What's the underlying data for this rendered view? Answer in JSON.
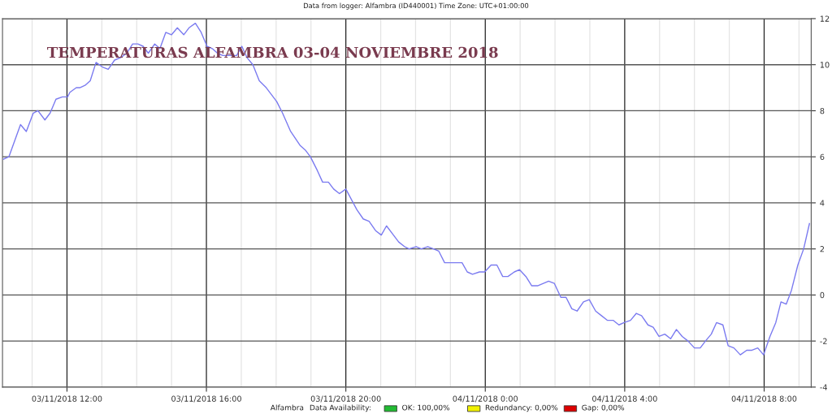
{
  "chart_data": {
    "type": "line",
    "title": "Data from logger: Alfambra (ID440001) Time Zone: UTC+01:00:00",
    "annotations": [
      "TEMPERATURAS ALFAMBRA 03-04 NOVIEMBRE 2018",
      "Alfambra",
      "Data Availability:",
      "OK: 100,00%",
      "Redundancy: 0,00%",
      "Gap: 0,00%"
    ],
    "x": [
      "2018-11-03T10:11",
      "2018-11-03T10:20",
      "2018-11-03T10:40",
      "2018-11-03T10:50",
      "2018-11-03T11:02",
      "2018-11-03T11:10",
      "2018-11-03T11:22",
      "2018-11-03T11:31",
      "2018-11-03T11:41",
      "2018-11-03T11:52",
      "2018-11-03T12:01",
      "2018-11-03T12:05",
      "2018-11-03T12:16",
      "2018-11-03T12:22",
      "2018-11-03T12:31",
      "2018-11-03T12:40",
      "2018-11-03T12:50",
      "2018-11-03T13:01",
      "2018-11-03T13:11",
      "2018-11-03T13:22",
      "2018-11-03T13:32",
      "2018-11-03T13:43",
      "2018-11-03T13:53",
      "2018-11-03T14:02",
      "2018-11-03T14:11",
      "2018-11-03T14:20",
      "2018-11-03T14:31",
      "2018-11-03T14:40",
      "2018-11-03T14:50",
      "2018-11-03T15:00",
      "2018-11-03T15:10",
      "2018-11-03T15:21",
      "2018-11-03T15:30",
      "2018-11-03T15:41",
      "2018-11-03T15:51",
      "2018-11-03T16:01",
      "2018-11-03T16:10",
      "2018-11-03T16:19",
      "2018-11-03T16:28",
      "2018-11-03T16:40",
      "2018-11-03T16:52",
      "2018-11-03T17:01",
      "2018-11-03T17:10",
      "2018-11-03T17:20",
      "2018-11-03T17:31",
      "2018-11-03T17:43",
      "2018-11-03T17:52",
      "2018-11-03T18:01",
      "2018-11-03T18:11",
      "2018-11-03T18:25",
      "2018-11-03T18:41",
      "2018-11-03T18:50",
      "2018-11-03T18:59",
      "2018-11-03T19:11",
      "2018-11-03T19:20",
      "2018-11-03T19:30",
      "2018-11-03T19:39",
      "2018-11-03T19:49",
      "2018-11-03T20:00",
      "2018-11-03T20:19",
      "2018-11-03T20:30",
      "2018-11-03T20:40",
      "2018-11-03T20:51",
      "2018-11-03T21:01",
      "2018-11-03T21:10",
      "2018-11-03T21:22",
      "2018-11-03T21:31",
      "2018-11-03T21:41",
      "2018-11-03T21:49",
      "2018-11-03T22:01",
      "2018-11-03T22:10",
      "2018-11-03T22:21",
      "2018-11-03T22:31",
      "2018-11-03T22:40",
      "2018-11-03T22:50",
      "2018-11-03T23:20",
      "2018-11-03T23:29",
      "2018-11-03T23:38",
      "2018-11-03T23:50",
      "2018-11-03T23:59",
      "2018-11-04T00:10",
      "2018-11-04T00:20",
      "2018-11-04T00:30",
      "2018-11-04T00:39",
      "2018-11-04T00:50",
      "2018-11-04T00:59",
      "2018-11-04T01:10",
      "2018-11-04T01:20",
      "2018-11-04T01:30",
      "2018-11-04T01:49",
      "2018-11-04T01:59",
      "2018-11-04T02:10",
      "2018-11-04T02:19",
      "2018-11-04T02:29",
      "2018-11-04T02:38",
      "2018-11-04T02:49",
      "2018-11-04T02:59",
      "2018-11-04T03:10",
      "2018-11-04T03:20",
      "2018-11-04T03:30",
      "2018-11-04T03:40",
      "2018-11-04T03:50",
      "2018-11-04T03:59",
      "2018-11-04T04:10",
      "2018-11-04T04:20",
      "2018-11-04T04:29",
      "2018-11-04T04:40",
      "2018-11-04T04:49",
      "2018-11-04T04:59",
      "2018-11-04T05:09",
      "2018-11-04T05:19",
      "2018-11-04T05:29",
      "2018-11-04T05:39",
      "2018-11-04T05:49",
      "2018-11-04T06:00",
      "2018-11-04T06:10",
      "2018-11-04T06:19",
      "2018-11-04T06:29",
      "2018-11-04T06:38",
      "2018-11-04T06:49",
      "2018-11-04T06:58",
      "2018-11-04T07:08",
      "2018-11-04T07:19",
      "2018-11-04T07:30",
      "2018-11-04T07:39",
      "2018-11-04T07:49",
      "2018-11-04T07:59",
      "2018-11-04T08:10",
      "2018-11-04T08:20",
      "2018-11-04T08:29",
      "2018-11-04T08:38",
      "2018-11-04T08:47",
      "2018-11-04T08:58",
      "2018-11-04T09:08",
      "2018-11-04T09:18"
    ],
    "series": [
      {
        "color": "#7b7bf0",
        "values": [
          5.9,
          6.0,
          7.4,
          7.1,
          7.9,
          8.0,
          7.6,
          7.9,
          8.5,
          8.6,
          8.6,
          8.8,
          9.0,
          9.0,
          9.1,
          9.3,
          10.1,
          9.9,
          9.8,
          10.2,
          10.3,
          10.5,
          10.9,
          10.9,
          10.8,
          10.5,
          10.9,
          10.7,
          11.4,
          11.3,
          11.6,
          11.3,
          11.6,
          11.8,
          11.4,
          10.8,
          10.7,
          10.5,
          10.4,
          10.4,
          10.4,
          10.8,
          10.3,
          10.0,
          9.3,
          9.0,
          8.7,
          8.4,
          7.9,
          7.1,
          6.5,
          6.3,
          6.0,
          5.4,
          4.9,
          4.9,
          4.6,
          4.4,
          4.6,
          3.7,
          3.3,
          3.2,
          2.8,
          2.6,
          3.0,
          2.6,
          2.3,
          2.1,
          2.0,
          2.1,
          2.0,
          2.1,
          2.0,
          1.9,
          1.4,
          1.4,
          1.0,
          0.9,
          1.0,
          1.0,
          1.3,
          1.3,
          0.8,
          0.8,
          1.0,
          1.1,
          0.8,
          0.4,
          0.4,
          0.6,
          0.5,
          -0.1,
          -0.1,
          -0.6,
          -0.7,
          -0.3,
          -0.2,
          -0.7,
          -0.9,
          -1.1,
          -1.1,
          -1.3,
          -1.2,
          -1.1,
          -0.8,
          -0.9,
          -1.3,
          -1.4,
          -1.8,
          -1.7,
          -1.9,
          -1.5,
          -1.8,
          -2.0,
          -2.3,
          -2.3,
          -2.0,
          -1.7,
          -1.2,
          -1.3,
          -2.2,
          -2.3,
          -2.6,
          -2.4,
          -2.4,
          -2.3,
          -2.6,
          -1.8,
          -1.2,
          -0.3,
          -0.4,
          0.2,
          1.3,
          2.0,
          3.1
        ]
      }
    ],
    "xlim": [
      "2018-11-03T10:09",
      "2018-11-04T09:21"
    ],
    "xticks": [
      {
        "value": "2018-11-03T11:00",
        "label": null
      },
      {
        "value": "2018-11-03T12:00",
        "label": "03/11/2018 12:00"
      },
      {
        "value": "2018-11-03T13:00",
        "label": null
      },
      {
        "value": "2018-11-03T14:00",
        "label": null
      },
      {
        "value": "2018-11-03T15:00",
        "label": null
      },
      {
        "value": "2018-11-03T16:00",
        "label": "03/11/2018 16:00"
      },
      {
        "value": "2018-11-03T17:00",
        "label": null
      },
      {
        "value": "2018-11-03T18:00",
        "label": null
      },
      {
        "value": "2018-11-03T19:00",
        "label": null
      },
      {
        "value": "2018-11-03T20:00",
        "label": "03/11/2018 20:00"
      },
      {
        "value": "2018-11-03T21:00",
        "label": null
      },
      {
        "value": "2018-11-03T22:00",
        "label": null
      },
      {
        "value": "2018-11-03T23:00",
        "label": null
      },
      {
        "value": "2018-11-04T00:00",
        "label": "04/11/2018 0:00"
      },
      {
        "value": "2018-11-04T01:00",
        "label": null
      },
      {
        "value": "2018-11-04T02:00",
        "label": null
      },
      {
        "value": "2018-11-04T03:00",
        "label": null
      },
      {
        "value": "2018-11-04T04:00",
        "label": "04/11/2018 4:00"
      },
      {
        "value": "2018-11-04T05:00",
        "label": null
      },
      {
        "value": "2018-11-04T06:00",
        "label": null
      },
      {
        "value": "2018-11-04T07:00",
        "label": null
      },
      {
        "value": "2018-11-04T08:00",
        "label": "04/11/2018 8:00"
      },
      {
        "value": "2018-11-04T09:00",
        "label": null
      }
    ],
    "ylim": [
      -4,
      12
    ],
    "yticks": [
      -4,
      -2,
      0,
      2,
      4,
      6,
      8,
      10,
      12
    ],
    "grid": true,
    "marker": "none",
    "line_style": "solid"
  }
}
